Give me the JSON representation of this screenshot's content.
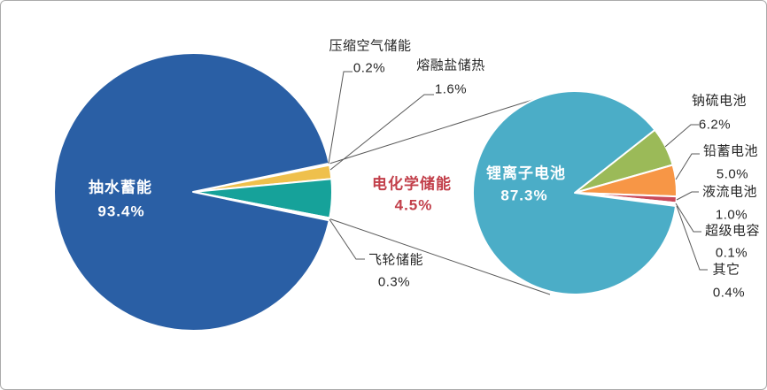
{
  "colors": {
    "background": "#ffffff",
    "frame_border": "#ababab",
    "leader_line": "#595959",
    "slice_border": "#ffffff",
    "label_text": "#262626",
    "inner_label_text": "#ffffff",
    "highlight_text": "#c2404b"
  },
  "chart_data": [
    {
      "type": "pie",
      "role": "primary-pie",
      "legend_position": "callout-labels",
      "start_angle_deg": -11.88,
      "slices": [
        {
          "key": "compressed-air",
          "label": "压缩空气储能",
          "value": 0.2,
          "pct": "0.2%",
          "color": "#ffffff"
        },
        {
          "key": "molten-salt",
          "label": "熔融盐储热",
          "value": 1.6,
          "pct": "1.6%",
          "color": "#efc04c"
        },
        {
          "key": "electrochemical",
          "label": "电化学储能",
          "value": 4.5,
          "pct": "4.5%",
          "color": "#16a29a"
        },
        {
          "key": "flywheel",
          "label": "飞轮储能",
          "value": 0.3,
          "pct": "0.3%",
          "color": "#ffffff"
        },
        {
          "key": "pumped-hydro",
          "label": "抽水蓄能",
          "value": 93.4,
          "pct": "93.4%",
          "color": "#2a5fa5"
        }
      ]
    },
    {
      "type": "pie",
      "role": "secondary-pie",
      "legend_position": "callout-labels",
      "start_angle_deg": -38.22,
      "slices": [
        {
          "key": "sodium-sulfur",
          "label": "钠硫电池",
          "value": 6.2,
          "pct": "6.2%",
          "color": "#9bba58"
        },
        {
          "key": "lead-acid",
          "label": "铅蓄电池",
          "value": 5.0,
          "pct": "5.0%",
          "color": "#f79646"
        },
        {
          "key": "flow-battery",
          "label": "液流电池",
          "value": 1.0,
          "pct": "1.0%",
          "color": "#c94a5a"
        },
        {
          "key": "supercapacitor",
          "label": "超级电容",
          "value": 0.1,
          "pct": "0.1%",
          "color": "#ffffff"
        },
        {
          "key": "others",
          "label": "其它",
          "value": 0.4,
          "pct": "0.4%",
          "color": "#ffffff"
        },
        {
          "key": "li-ion",
          "label": "锂离子电池",
          "value": 87.3,
          "pct": "87.3%",
          "color": "#4badc7"
        }
      ]
    }
  ]
}
